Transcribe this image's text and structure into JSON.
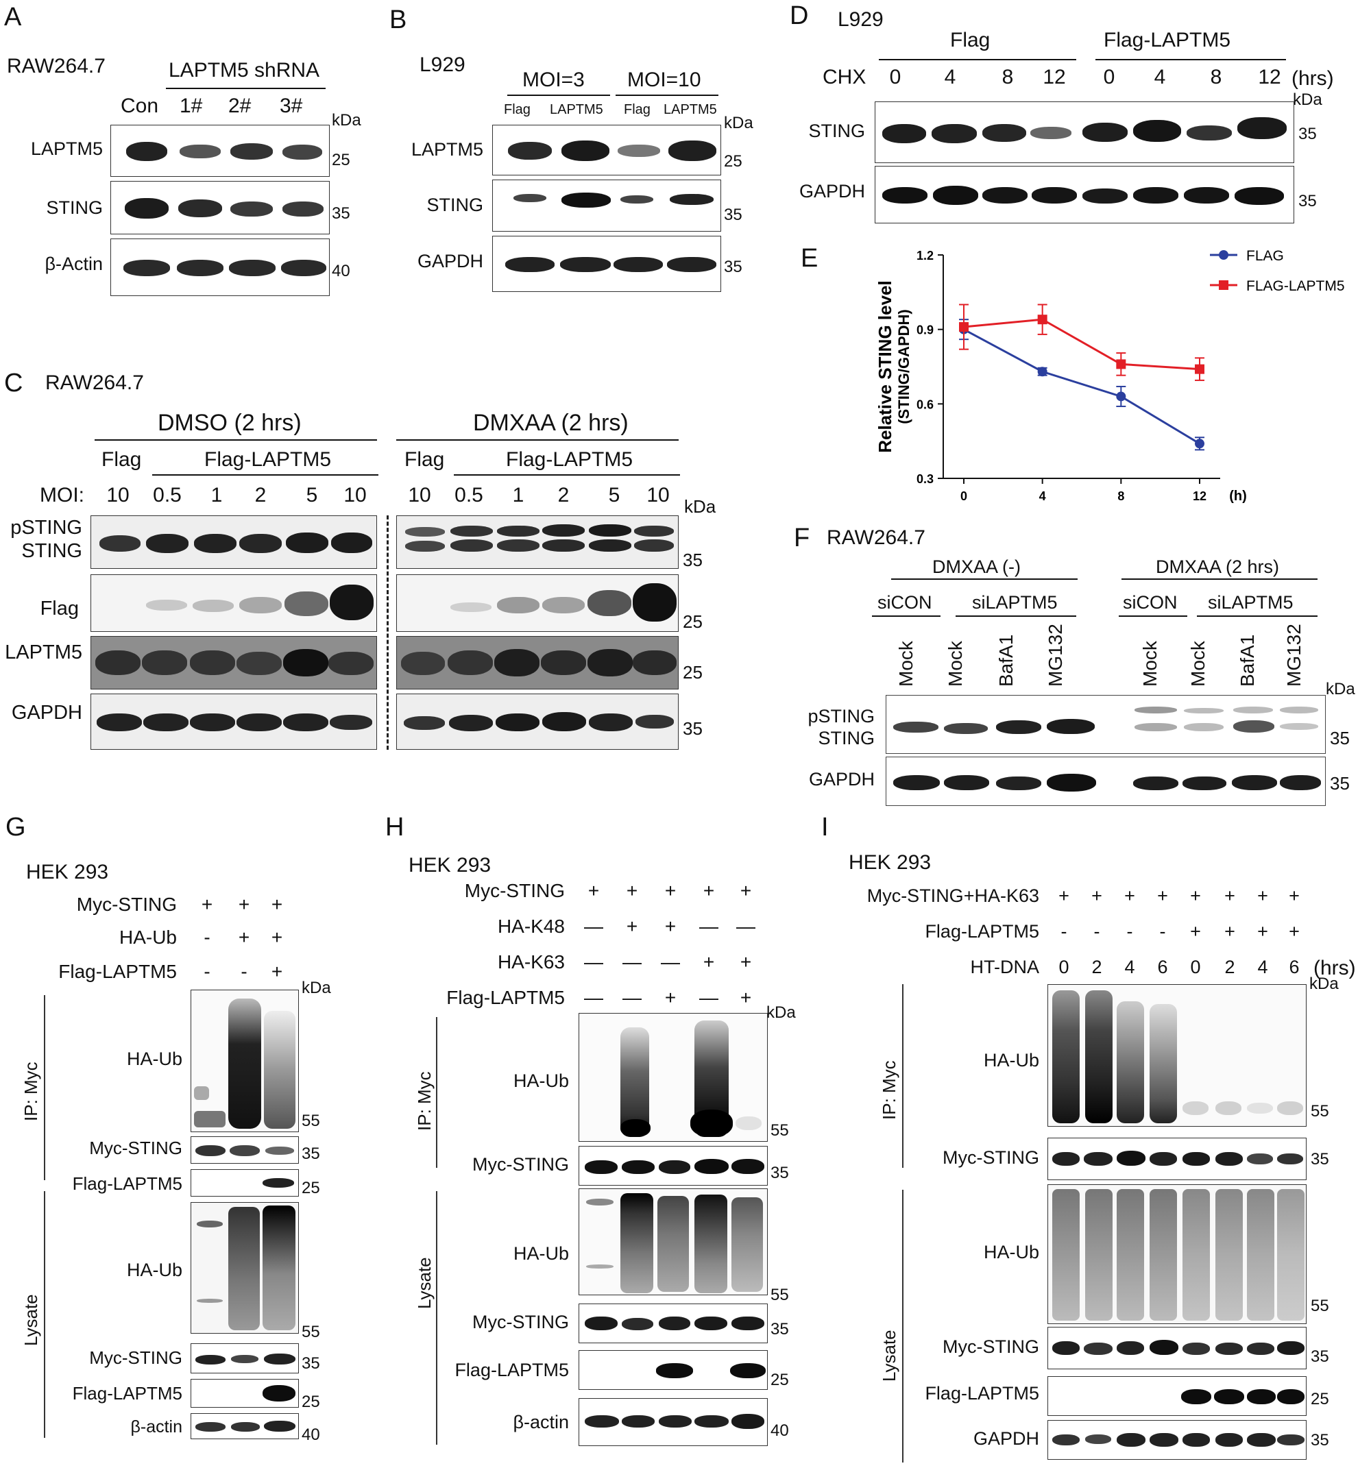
{
  "panelA": {
    "letter": "A",
    "cell": "RAW264.7",
    "header": "LAPTM5 shRNA",
    "lanes": [
      "Con",
      "1#",
      "2#",
      "3#"
    ],
    "kda": "kDa",
    "rows": [
      {
        "label": "LAPTM5",
        "marker": "25"
      },
      {
        "label": "STING",
        "marker": "35"
      },
      {
        "label": "β-Actin",
        "marker": "40"
      }
    ]
  },
  "panelB": {
    "letter": "B",
    "cell": "L929",
    "groups": [
      "MOI=3",
      "MOI=10"
    ],
    "lanes": [
      "Flag",
      "LAPTM5",
      "Flag",
      "LAPTM5"
    ],
    "kda": "kDa",
    "rows": [
      {
        "label": "LAPTM5",
        "marker": "25"
      },
      {
        "label": "STING",
        "marker": "35"
      },
      {
        "label": "GAPDH",
        "marker": "35"
      }
    ]
  },
  "panelC": {
    "letter": "C",
    "cell": "RAW264.7",
    "groups": [
      "DMSO (2 hrs)",
      "DMXAA (2 hrs)"
    ],
    "sub": [
      "Flag",
      "Flag-LAPTM5",
      "Flag",
      "Flag-LAPTM5"
    ],
    "moi_label": "MOI:",
    "moi": [
      "10",
      "0.5",
      "1",
      "2",
      "5",
      "10",
      "10",
      "0.5",
      "1",
      "2",
      "5",
      "10"
    ],
    "kda": "kDa",
    "rows": [
      {
        "label1": "pSTING",
        "label2": "STING",
        "marker": "35"
      },
      {
        "label1": "Flag",
        "marker": "25"
      },
      {
        "label1": "LAPTM5",
        "marker": "25"
      },
      {
        "label1": "GAPDH",
        "marker": "35"
      }
    ]
  },
  "panelD": {
    "letter": "D",
    "cell": "L929",
    "groups": [
      "Flag",
      "Flag-LAPTM5"
    ],
    "chx": "CHX",
    "times": [
      "0",
      "4",
      "8",
      "12",
      "0",
      "4",
      "8",
      "12"
    ],
    "unit": "(hrs)",
    "kda": "kDa",
    "rows": [
      {
        "label": "STING",
        "marker": "35"
      },
      {
        "label": "GAPDH",
        "marker": "35"
      }
    ]
  },
  "panelE": {
    "letter": "E"
  },
  "panelF": {
    "letter": "F",
    "cell": "RAW264.7",
    "groups": [
      "DMXAA (-)",
      "DMXAA (2 hrs)"
    ],
    "sub": [
      "siCON",
      "siLAPTM5",
      "siCON",
      "siLAPTM5"
    ],
    "lanes": [
      "Mock",
      "Mock",
      "BafA1",
      "MG132",
      "Mock",
      "Mock",
      "BafA1",
      "MG132"
    ],
    "kda": "kDa",
    "rows": [
      {
        "label1": "pSTING",
        "label2": "STING",
        "marker": "35"
      },
      {
        "label1": "GAPDH",
        "marker": "35"
      }
    ]
  },
  "panelG": {
    "letter": "G",
    "cell": "HEK 293",
    "conds": [
      {
        "name": "Myc-STING",
        "v": [
          "+",
          "+",
          "+"
        ]
      },
      {
        "name": "HA-Ub",
        "v": [
          "-",
          "+",
          "+"
        ]
      },
      {
        "name": "Flag-LAPTM5",
        "v": [
          "-",
          "-",
          "+"
        ]
      }
    ],
    "ip": "IP: Myc",
    "lysate": "Lysate",
    "kda": "kDa",
    "rows": [
      {
        "label": "HA-Ub",
        "marker": "55"
      },
      {
        "label": "Myc-STING",
        "marker": "35"
      },
      {
        "label": "Flag-LAPTM5",
        "marker": "25"
      },
      {
        "label": "HA-Ub",
        "marker": "55"
      },
      {
        "label": "Myc-STING",
        "marker": "35"
      },
      {
        "label": "Flag-LAPTM5",
        "marker": "25"
      },
      {
        "label": "β-actin",
        "marker": "40"
      }
    ]
  },
  "panelH": {
    "letter": "H",
    "cell": "HEK 293",
    "conds": [
      {
        "name": "Myc-STING",
        "v": [
          "+",
          "+",
          "+",
          "+",
          "+"
        ]
      },
      {
        "name": "HA-K48",
        "v": [
          "—",
          "+",
          "+",
          "—",
          "—"
        ]
      },
      {
        "name": "HA-K63",
        "v": [
          "—",
          "—",
          "—",
          "+",
          "+"
        ]
      },
      {
        "name": "Flag-LAPTM5",
        "v": [
          "—",
          "—",
          "+",
          "—",
          "+"
        ]
      }
    ],
    "ip": "IP: Myc",
    "lysate": "Lysate",
    "kda": "kDa",
    "rows": [
      {
        "label": "HA-Ub",
        "marker": "55"
      },
      {
        "label": "Myc-STING",
        "marker": "35"
      },
      {
        "label": "HA-Ub",
        "marker": "55"
      },
      {
        "label": "Myc-STING",
        "marker": "35"
      },
      {
        "label": "Flag-LAPTM5",
        "marker": "25"
      },
      {
        "label": "β-actin",
        "marker": "40"
      }
    ]
  },
  "panelI": {
    "letter": "I",
    "cell": "HEK 293",
    "conds": [
      {
        "name": "Myc-STING+HA-K63",
        "v": [
          "+",
          "+",
          "+",
          "+",
          "+",
          "+",
          "+",
          "+"
        ]
      },
      {
        "name": "Flag-LAPTM5",
        "v": [
          "-",
          "-",
          "-",
          "-",
          "+",
          "+",
          "+",
          "+"
        ]
      },
      {
        "name": "HT-DNA",
        "v": [
          "0",
          "2",
          "4",
          "6",
          "0",
          "2",
          "4",
          "6"
        ]
      }
    ],
    "unit": "(hrs)",
    "ip": "IP: Myc",
    "lysate": "Lysate",
    "kda": "kDa",
    "rows": [
      {
        "label": "HA-Ub",
        "marker": "55"
      },
      {
        "label": "Myc-STING",
        "marker": "35"
      },
      {
        "label": "HA-Ub",
        "marker": "55"
      },
      {
        "label": "Myc-STING",
        "marker": "35"
      },
      {
        "label": "Flag-LAPTM5",
        "marker": "25"
      },
      {
        "label": "GAPDH",
        "marker": "35"
      }
    ]
  },
  "chart_data": {
    "type": "line",
    "x": [
      0,
      4,
      8,
      12
    ],
    "xlabel": "(h)",
    "ylabel": "Relative STING level",
    "ylabel2": "(STING/GAPDH)",
    "ylim": [
      0.3,
      1.2
    ],
    "yticks": [
      "0.3",
      "0.6",
      "0.9",
      "1.2"
    ],
    "xticks": [
      "0",
      "4",
      "8",
      "12"
    ],
    "legend": "top-right",
    "series": [
      {
        "name": "FLAG",
        "color": "#2b3f9e",
        "values": [
          0.9,
          0.73,
          0.63,
          0.44
        ],
        "err": [
          0.04,
          0.015,
          0.04,
          0.025
        ]
      },
      {
        "name": "FLAG-LAPTM5",
        "color": "#e21f26",
        "values": [
          0.91,
          0.94,
          0.76,
          0.74
        ],
        "err": [
          0.09,
          0.06,
          0.045,
          0.045
        ]
      }
    ]
  }
}
